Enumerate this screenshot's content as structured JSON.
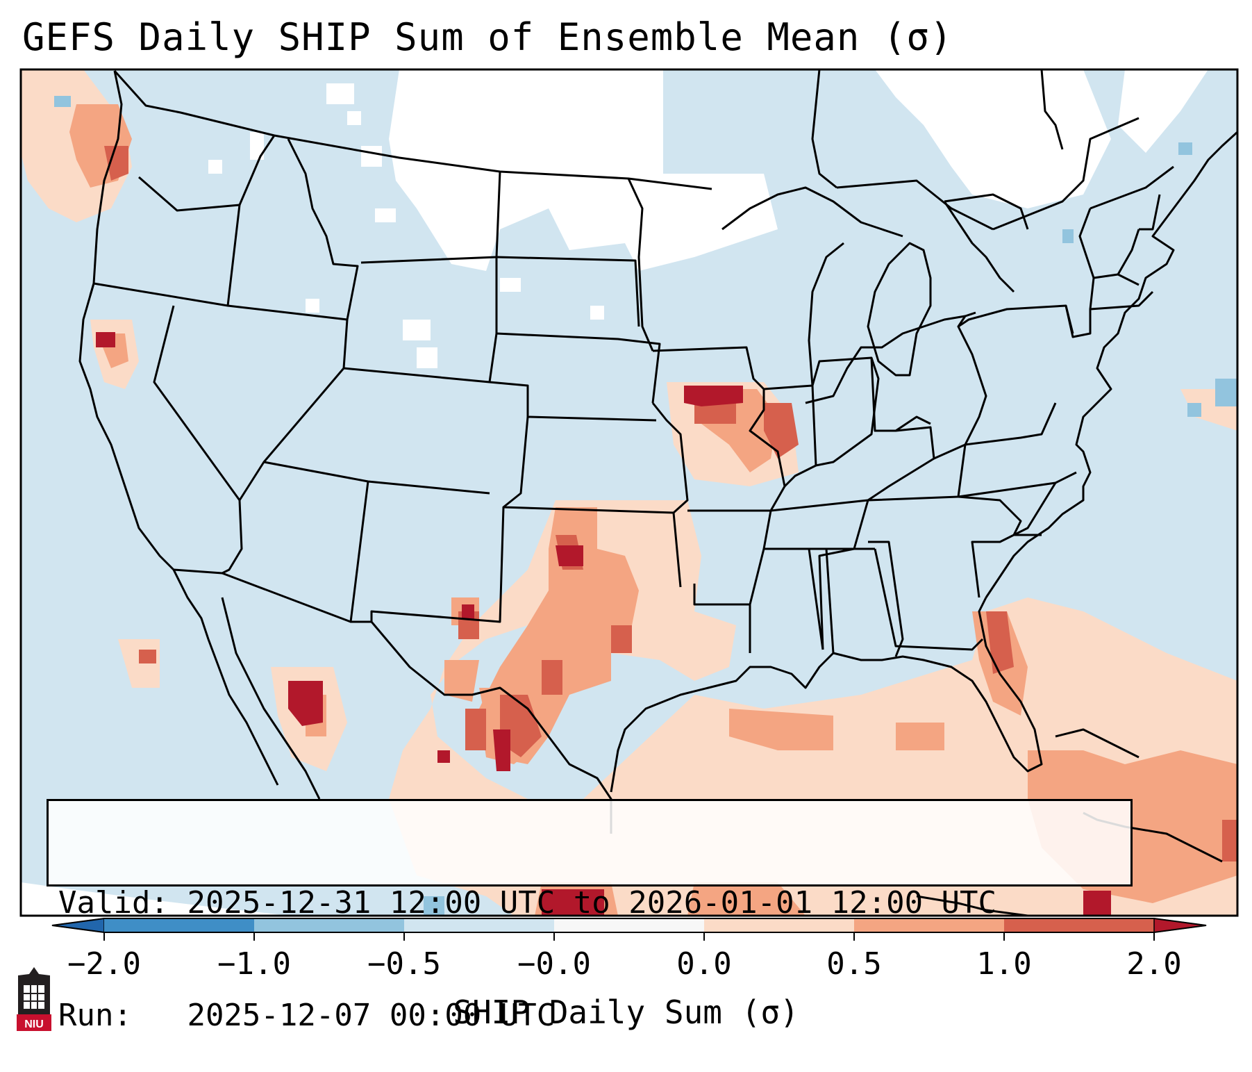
{
  "title": "GEFS Daily SHIP Sum of Ensemble Mean (σ)",
  "info": {
    "valid_label": "Valid:",
    "valid_value": "2025-12-31 12:00 UTC to 2026-01-01 12:00 UTC",
    "run_label": "Run:",
    "run_value": "2025-12-07 00:00 UTC"
  },
  "colorbar": {
    "label": "SHIP Daily Sum (σ)",
    "ticks": [
      "−2.0",
      "−1.0",
      "−0.5",
      "−0.0",
      "0.0",
      "0.5",
      "1.0",
      "2.0"
    ],
    "colors": [
      "#3f8ec6",
      "#92c4de",
      "#d1e5f0",
      "#f7f7f7",
      "#fbdbc7",
      "#f4a582",
      "#d6604d",
      "#b2182b"
    ],
    "under_color": "#2166ac",
    "over_color": "#b2182b"
  },
  "map_colors": {
    "ocean_land_base": "#d1e5f0",
    "neutral": "#ffffff",
    "light_warm": "#fbdbc7",
    "mid_warm": "#f4a582",
    "strong_warm": "#d6604d",
    "extreme_warm": "#b2182b",
    "light_cool": "#92c4de"
  },
  "logo": {
    "text": "NIU"
  }
}
